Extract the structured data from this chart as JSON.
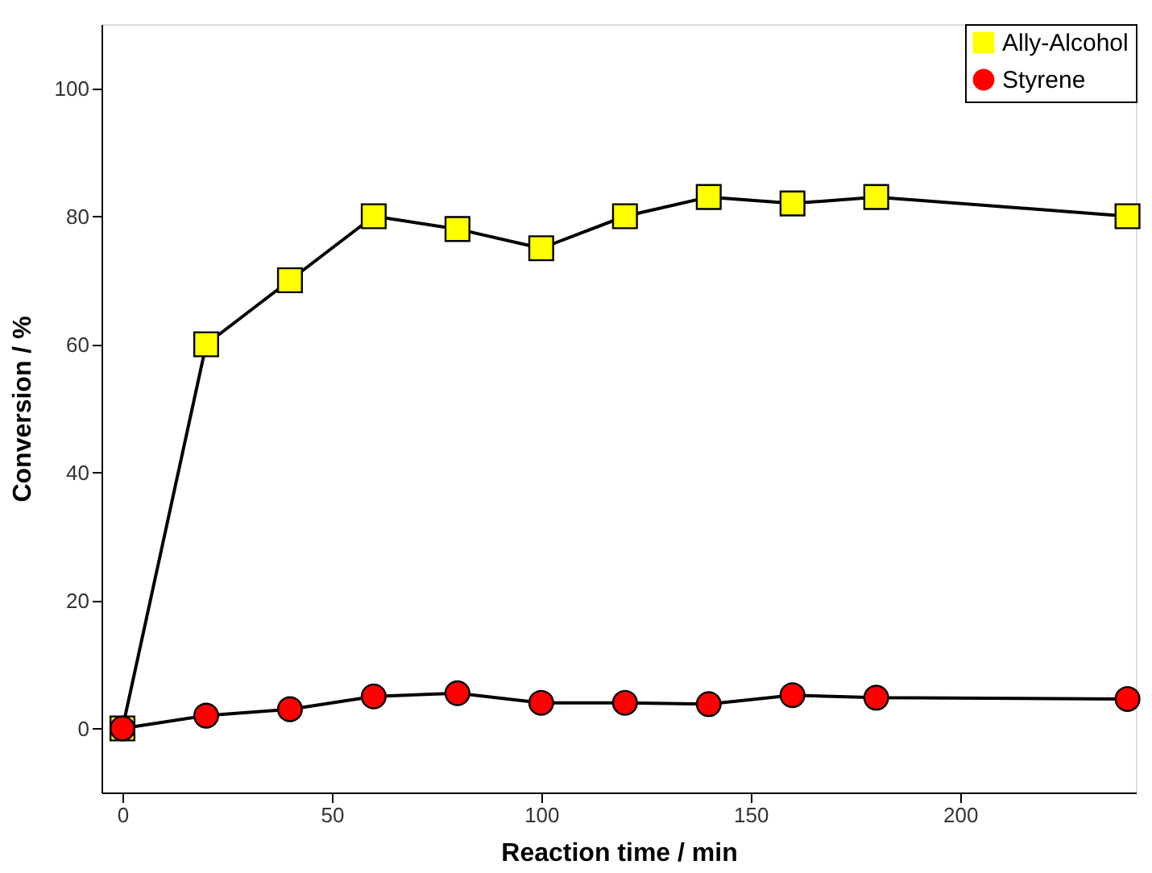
{
  "chart_data": {
    "type": "line",
    "xlabel": "Reaction time / min",
    "ylabel": "Conversion / %",
    "x": [
      0,
      20,
      40,
      60,
      80,
      100,
      120,
      140,
      160,
      180,
      240
    ],
    "series": [
      {
        "name": "Ally-Alcohol",
        "color": "#ffff00",
        "marker": "square",
        "values": [
          0,
          60,
          70,
          80,
          78,
          75,
          80,
          83,
          82,
          83,
          80
        ]
      },
      {
        "name": "Styrene",
        "color": "#ff0000",
        "marker": "circle",
        "values": [
          0,
          2,
          3,
          5,
          5.5,
          4,
          4,
          3.8,
          5.2,
          4.8,
          4.6
        ]
      }
    ],
    "xlim": [
      -5,
      242
    ],
    "xticks": [
      0,
      50,
      100,
      150,
      200
    ],
    "ylim": [
      -10,
      110
    ],
    "yticks": [
      0,
      20,
      40,
      60,
      80,
      100
    ],
    "grid": false,
    "legend": "top right",
    "line_style": "solid"
  }
}
